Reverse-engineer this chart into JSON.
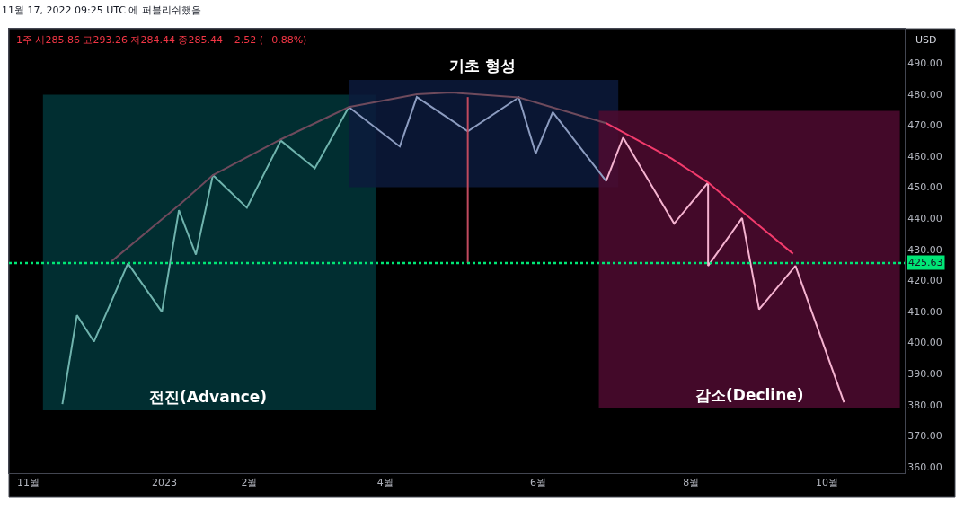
{
  "chart_data": {
    "type": "line",
    "title": "1주 시285.86 고293.26 저284.44 종285.44 −2.52 (−0.88%)",
    "ylabel": "USD",
    "annotations": [
      "11월 17, 2022 09:25 UTC 에 퍼블리쉬했음"
    ],
    "series": [
      {
        "color": "#6fb3ad",
        "x": [
          "2022-11-21",
          "2022-11-27",
          "2022-12-04",
          "2022-12-18",
          "2023-01-01",
          "2023-01-08",
          "2023-01-15",
          "2023-01-22",
          "2023-02-05",
          "2023-02-19",
          "2023-03-05",
          "2023-03-19"
        ],
        "values": [
          380.2,
          408.8,
          400.3,
          425.5,
          409.9,
          442.6,
          428.3,
          453.9,
          443.4,
          465.0,
          456.1,
          475.8
        ]
      },
      {
        "color": "#8c9cc0",
        "x": [
          "2023-03-19",
          "2023-04-09",
          "2023-04-16",
          "2023-05-07",
          "2023-05-28",
          "2023-06-04",
          "2023-06-11",
          "2023-07-03"
        ],
        "values": [
          475.8,
          463.1,
          479.0,
          468.0,
          478.9,
          460.8,
          474.2,
          452.0
        ]
      },
      {
        "color": "#f5b3d0",
        "x": [
          "2023-07-03",
          "2023-07-10",
          "2023-07-31",
          "2023-08-14",
          "2023-08-14",
          "2023-08-28",
          "2023-09-04",
          "2023-09-19",
          "2023-10-09"
        ],
        "values": [
          452.0,
          466.0,
          438.3,
          451.5,
          424.7,
          440.1,
          410.7,
          424.7,
          380.8
        ]
      },
      {
        "color": "#6e4a5c",
        "x": [
          "2022-12-11",
          "2023-01-09",
          "2023-01-22",
          "2023-02-19",
          "2023-03-19",
          "2023-04-16",
          "2023-04-30",
          "2023-05-28",
          "2023-07-03"
        ],
        "values": [
          426.0,
          444.9,
          453.9,
          465.4,
          475.8,
          479.9,
          480.5,
          478.9,
          470.6
        ]
      },
      {
        "color": "#f23b6c",
        "x": [
          "2023-07-03",
          "2023-07-30",
          "2023-08-14",
          "2023-08-28",
          "2023-09-18"
        ],
        "values": [
          470.6,
          459.2,
          451.5,
          442.2,
          428.6
        ]
      },
      {
        "color": "#c04a5e",
        "x": [
          "2023-05-07",
          "2023-05-07"
        ],
        "values": [
          479.0,
          425.6
        ]
      }
    ],
    "bands": [
      {
        "axis": "x",
        "from": "2022-11-13",
        "to": "2023-03-30",
        "label": "전진(Advance)",
        "color": "#01363a"
      },
      {
        "axis": "x",
        "from": "2023-03-19",
        "to": "2023-07-08",
        "label": "기초 형성",
        "color": "#0c1a3c"
      },
      {
        "axis": "x",
        "from": "2023-06-30",
        "to": "2023-11-01",
        "label": "감소(Decline)",
        "color": "#4f0a30"
      }
    ],
    "ref_lines": [
      {
        "axis": "y",
        "value": 425.63,
        "label": "425.63",
        "color": "#00e676",
        "line_style": "dotted"
      }
    ],
    "xlim": [
      "2022-10-30",
      "2023-11-03"
    ],
    "xticks": [
      {
        "value": "2022-11-07",
        "label": "11월"
      },
      {
        "value": "2023-01-02",
        "label": "2023"
      },
      {
        "value": "2023-02-06",
        "label": "2월"
      },
      {
        "value": "2023-04-03",
        "label": "4월"
      },
      {
        "value": "2023-06-05",
        "label": "6월"
      },
      {
        "value": "2023-08-07",
        "label": "8월"
      },
      {
        "value": "2023-10-02",
        "label": "10월"
      }
    ],
    "ylim": [
      358,
      501
    ],
    "yticks": [
      {
        "value": 360,
        "label": "360.00"
      },
      {
        "value": 370,
        "label": "370.00"
      },
      {
        "value": 380,
        "label": "380.00"
      },
      {
        "value": 390,
        "label": "390.00"
      },
      {
        "value": 400,
        "label": "400.00"
      },
      {
        "value": 410,
        "label": "410.00"
      },
      {
        "value": 420,
        "label": "420.00"
      },
      {
        "value": 430,
        "label": "430.00"
      },
      {
        "value": 440,
        "label": "440.00"
      },
      {
        "value": 450,
        "label": "450.00"
      },
      {
        "value": 460,
        "label": "460.00"
      },
      {
        "value": 470,
        "label": "470.00"
      },
      {
        "value": 480,
        "label": "480.00"
      },
      {
        "value": 490,
        "label": "490.00"
      }
    ],
    "grid": false
  }
}
